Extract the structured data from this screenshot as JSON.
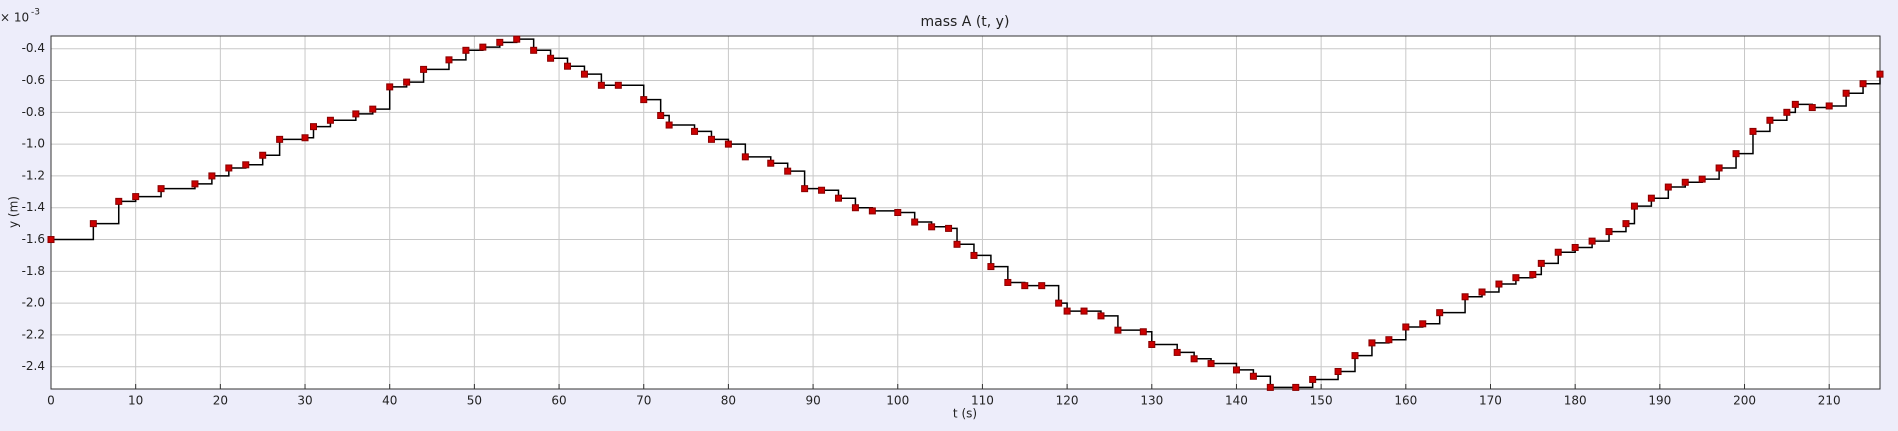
{
  "chart_data": {
    "type": "line",
    "title": "mass A (t, y)",
    "xlabel": "t (s)",
    "ylabel": "y (m)",
    "multiplier": "× 10",
    "multiplier_exp": "-3",
    "xlim": [
      0,
      216
    ],
    "ylim": [
      -2.54,
      -0.32
    ],
    "grid": true,
    "color": "#cc0000",
    "xticks": [
      0,
      10,
      20,
      30,
      40,
      50,
      60,
      70,
      80,
      90,
      100,
      110,
      120,
      130,
      140,
      150,
      160,
      170,
      180,
      190,
      200,
      210
    ],
    "yticks": [
      -0.4,
      -0.6,
      -0.8,
      {
        "value": -1,
        "label": "-1.0"
      },
      -1.2,
      -1.4,
      -1.6,
      -1.8,
      {
        "value": -2,
        "label": "-2.0"
      },
      -2.2,
      -2.4
    ],
    "x": [
      0,
      5,
      8,
      10,
      13,
      17,
      19,
      21,
      23,
      25,
      27,
      30,
      31,
      33,
      36,
      38,
      40,
      42,
      44,
      47,
      49,
      51,
      53,
      55,
      57,
      59,
      61,
      63,
      65,
      67,
      70,
      72,
      73,
      76,
      78,
      80,
      82,
      85,
      87,
      89,
      91,
      93,
      95,
      97,
      100,
      102,
      104,
      106,
      107,
      109,
      111,
      113,
      115,
      117,
      119,
      120,
      122,
      124,
      126,
      129,
      130,
      133,
      135,
      137,
      140,
      142,
      144,
      147,
      149,
      152,
      154,
      156,
      158,
      160,
      162,
      164,
      167,
      169,
      171,
      173,
      175,
      176,
      178,
      180,
      182,
      184,
      186,
      187,
      189,
      191,
      193,
      195,
      197,
      199,
      201,
      203,
      205,
      206,
      208,
      210,
      212,
      214,
      216
    ],
    "values": [
      -1.6,
      -1.5,
      -1.36,
      -1.33,
      -1.28,
      -1.25,
      -1.2,
      -1.15,
      -1.13,
      -1.07,
      -0.97,
      -0.96,
      -0.89,
      -0.85,
      -0.81,
      -0.78,
      -0.64,
      -0.61,
      -0.53,
      -0.47,
      -0.41,
      -0.39,
      -0.36,
      -0.34,
      -0.41,
      -0.46,
      -0.51,
      -0.56,
      -0.63,
      -0.63,
      -0.72,
      -0.82,
      -0.88,
      -0.92,
      -0.97,
      -1.0,
      -1.08,
      -1.12,
      -1.17,
      -1.28,
      -1.29,
      -1.34,
      -1.4,
      -1.42,
      -1.43,
      -1.49,
      -1.52,
      -1.53,
      -1.63,
      -1.7,
      -1.77,
      -1.87,
      -1.89,
      -1.89,
      -2.0,
      -2.05,
      -2.05,
      -2.08,
      -2.17,
      -2.18,
      -2.26,
      -2.31,
      -2.35,
      -2.38,
      -2.42,
      -2.46,
      -2.53,
      -2.53,
      -2.48,
      -2.43,
      -2.33,
      -2.25,
      -2.23,
      -2.15,
      -2.13,
      -2.06,
      -1.96,
      -1.93,
      -1.88,
      -1.84,
      -1.82,
      -1.75,
      -1.68,
      -1.65,
      -1.61,
      -1.55,
      -1.5,
      -1.39,
      -1.34,
      -1.27,
      -1.24,
      -1.22,
      -1.15,
      -1.06,
      -0.92,
      -0.85,
      -0.8,
      -0.75,
      -0.77,
      -0.76,
      -0.68,
      -0.62,
      -0.56
    ]
  }
}
